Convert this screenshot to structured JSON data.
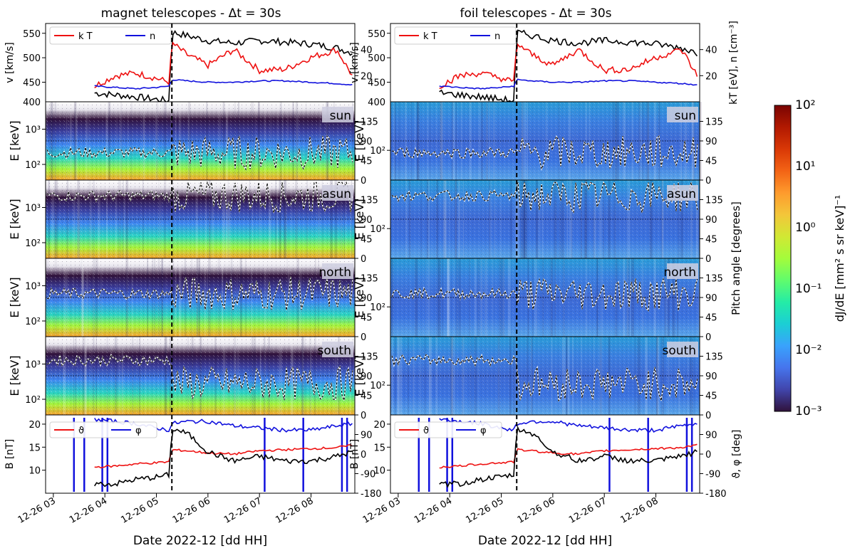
{
  "figure": {
    "columns": [
      {
        "title": "magnet telescopes  -  Δt = 30s"
      },
      {
        "title": "foil telescopes  -  Δt = 30s"
      }
    ],
    "date_label": "Date 2022-12 [dd HH]",
    "x_ticks": [
      "12-26 03",
      "12-26 04",
      "12-26 05",
      "12-26 06",
      "12-26 07",
      "12-26 08"
    ],
    "shock_time_hours": 5.3,
    "x_range_hours": [
      2.85,
      8.85
    ]
  },
  "panels": {
    "solar_wind": {
      "ylabel_left": "v [km/s]",
      "ylabel_right": "kT [eV], n [cm⁻³]",
      "legend": [
        "k T",
        "n"
      ],
      "yticks_left": [
        "450",
        "500",
        "550"
      ],
      "yticks_right": [
        "20",
        "40"
      ],
      "series_colors": {
        "v": "#000000",
        "kT": "#ee1111",
        "n": "#1111dd"
      }
    },
    "spectrograms": [
      {
        "label": "sun"
      },
      {
        "label": "asun"
      },
      {
        "label": "north"
      },
      {
        "label": "south"
      }
    ],
    "spectrogram_common": {
      "ylabel_left": "E [keV]",
      "ylabel_right": "Pitch angle [degrees]",
      "pitch_ticks": [
        "0",
        "45",
        "90",
        "135"
      ],
      "top_tick": "400",
      "magnet_energy_ticks": [
        "10²",
        "10³"
      ],
      "foil_energy_ticks": [
        "10²"
      ]
    },
    "field": {
      "ylabel_left": "B [nT]",
      "ylabel_right": "ϑ, φ [deg]",
      "legend": [
        "ϑ",
        "φ"
      ],
      "yticks_left": [
        "10",
        "15",
        "20"
      ],
      "yticks_right": [
        "-180",
        "-90",
        "0",
        "90"
      ],
      "series_colors": {
        "B": "#000000",
        "theta": "#ee1111",
        "phi": "#1111dd"
      }
    }
  },
  "colorbar": {
    "label": "dJ/dE [mm² s sr keV]⁻¹",
    "ticks": [
      "10⁻³",
      "10⁻²",
      "10⁻¹",
      "10⁰",
      "10¹",
      "10²"
    ],
    "colormap": [
      "#30123b",
      "#4145ab",
      "#4675ed",
      "#39a2fc",
      "#1bcfd4",
      "#24eca6",
      "#61fc6c",
      "#a4fc3b",
      "#d1e834",
      "#f3c63a",
      "#fe9b2d",
      "#f36315",
      "#d93806",
      "#b11901",
      "#7a0402"
    ]
  },
  "chart_data": [
    {
      "type": "line",
      "title": "magnet telescopes  -  Δt = 30s",
      "xlabel": "Date 2022-12 [dd HH]",
      "x_hours": [
        3.8,
        4.2,
        4.6,
        5.0,
        5.25,
        5.3,
        5.6,
        6.0,
        6.5,
        7.0,
        7.5,
        8.0,
        8.5,
        8.8
      ],
      "series": [
        {
          "name": "v [km/s]",
          "values": [
            428,
            424,
            420,
            415,
            412,
            552,
            545,
            535,
            530,
            535,
            532,
            528,
            520,
            510
          ]
        },
        {
          "name": "k T [eV]",
          "values": [
            12,
            20,
            22,
            18,
            15,
            45,
            36,
            28,
            40,
            24,
            25,
            34,
            40,
            20
          ]
        },
        {
          "name": "n [cm^-3]",
          "values": [
            12,
            11,
            10,
            11,
            12,
            17,
            16,
            15,
            15,
            16,
            16,
            15,
            14,
            13
          ]
        },
        {
          "name": "B [nT]",
          "values": [
            7,
            7,
            8,
            8.5,
            9,
            19,
            18,
            14,
            12,
            13,
            12,
            12,
            13,
            14
          ]
        },
        {
          "name": "theta [deg]",
          "values": [
            -60,
            -55,
            -45,
            -40,
            -35,
            20,
            15,
            5,
            0,
            15,
            20,
            25,
            30,
            40
          ]
        },
        {
          "name": "phi [deg]",
          "values": [
            160,
            150,
            140,
            120,
            110,
            140,
            150,
            150,
            130,
            120,
            110,
            110,
            130,
            140
          ]
        }
      ],
      "ylim_v": [
        410,
        570
      ],
      "ylim_right": [
        0,
        60
      ],
      "ylim_B": [
        5,
        22
      ],
      "ylim_angle": [
        -180,
        180
      ]
    },
    {
      "type": "heatmap",
      "title": "foil telescopes  -  Δt = 30s",
      "xlabel": "Date 2022-12 [dd HH]",
      "y_energy_keV_range": [
        40,
        400
      ],
      "pitch_angle_range_deg": [
        0,
        180
      ],
      "color_range": [
        0.001,
        100
      ],
      "panels": [
        "sun",
        "asun",
        "north",
        "south"
      ]
    }
  ]
}
